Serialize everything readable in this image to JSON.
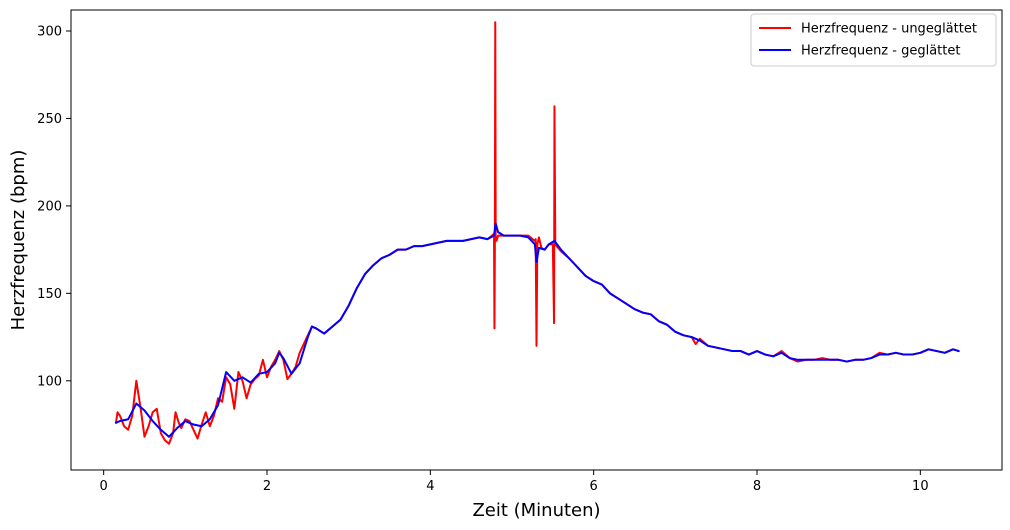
{
  "chart_data": {
    "type": "line",
    "title": "",
    "xlabel": "Zeit (Minuten)",
    "ylabel": "Herzfrequenz (bpm)",
    "xlim": [
      -0.4,
      11.0
    ],
    "ylim": [
      49,
      312
    ],
    "xticks": [
      0,
      2,
      4,
      6,
      8,
      10
    ],
    "yticks": [
      100,
      150,
      200,
      250,
      300
    ],
    "grid": false,
    "legend_position": "top-right",
    "series": [
      {
        "name": "Herzfrequenz - ungeglättet",
        "color": "#ff0000",
        "points": [
          [
            0.15,
            76
          ],
          [
            0.17,
            82
          ],
          [
            0.2,
            80
          ],
          [
            0.25,
            74
          ],
          [
            0.3,
            72
          ],
          [
            0.35,
            80
          ],
          [
            0.4,
            100
          ],
          [
            0.45,
            85
          ],
          [
            0.5,
            68
          ],
          [
            0.55,
            74
          ],
          [
            0.6,
            82
          ],
          [
            0.65,
            84
          ],
          [
            0.7,
            70
          ],
          [
            0.75,
            66
          ],
          [
            0.8,
            64
          ],
          [
            0.85,
            70
          ],
          [
            0.88,
            82
          ],
          [
            0.92,
            76
          ],
          [
            0.95,
            73
          ],
          [
            1.0,
            78
          ],
          [
            1.05,
            77
          ],
          [
            1.1,
            72
          ],
          [
            1.15,
            67
          ],
          [
            1.2,
            75
          ],
          [
            1.25,
            82
          ],
          [
            1.3,
            74
          ],
          [
            1.35,
            80
          ],
          [
            1.4,
            90
          ],
          [
            1.45,
            88
          ],
          [
            1.5,
            102
          ],
          [
            1.55,
            98
          ],
          [
            1.6,
            84
          ],
          [
            1.65,
            105
          ],
          [
            1.7,
            100
          ],
          [
            1.75,
            90
          ],
          [
            1.8,
            98
          ],
          [
            1.85,
            101
          ],
          [
            1.9,
            103
          ],
          [
            1.95,
            112
          ],
          [
            2.0,
            102
          ],
          [
            2.05,
            108
          ],
          [
            2.1,
            112
          ],
          [
            2.15,
            117
          ],
          [
            2.2,
            112
          ],
          [
            2.25,
            101
          ],
          [
            2.3,
            104
          ],
          [
            2.35,
            108
          ],
          [
            2.4,
            116
          ],
          [
            2.5,
            126
          ],
          [
            2.55,
            131
          ],
          [
            2.6,
            130
          ],
          [
            2.7,
            127
          ],
          [
            2.8,
            131
          ],
          [
            2.9,
            135
          ],
          [
            3.0,
            143
          ],
          [
            3.1,
            153
          ],
          [
            3.2,
            161
          ],
          [
            3.3,
            166
          ],
          [
            3.4,
            170
          ],
          [
            3.5,
            172
          ],
          [
            3.6,
            175
          ],
          [
            3.7,
            175
          ],
          [
            3.8,
            177
          ],
          [
            3.9,
            177
          ],
          [
            4.0,
            178
          ],
          [
            4.1,
            179
          ],
          [
            4.2,
            180
          ],
          [
            4.3,
            180
          ],
          [
            4.4,
            180
          ],
          [
            4.5,
            181
          ],
          [
            4.6,
            182
          ],
          [
            4.7,
            181
          ],
          [
            4.78,
            184
          ],
          [
            4.785,
            130
          ],
          [
            4.79,
            175
          ],
          [
            4.795,
            305
          ],
          [
            4.8,
            183
          ],
          [
            4.81,
            180
          ],
          [
            4.83,
            183
          ],
          [
            4.9,
            183
          ],
          [
            5.0,
            183
          ],
          [
            5.1,
            183
          ],
          [
            5.2,
            183
          ],
          [
            5.28,
            180
          ],
          [
            5.29,
            181
          ],
          [
            5.3,
            120
          ],
          [
            5.31,
            178
          ],
          [
            5.33,
            182
          ],
          [
            5.36,
            176
          ],
          [
            5.4,
            175
          ],
          [
            5.45,
            178
          ],
          [
            5.5,
            178
          ],
          [
            5.515,
            133
          ],
          [
            5.52,
            257
          ],
          [
            5.53,
            178
          ],
          [
            5.6,
            174
          ],
          [
            5.7,
            170
          ],
          [
            5.8,
            165
          ],
          [
            5.9,
            160
          ],
          [
            6.0,
            157
          ],
          [
            6.1,
            155
          ],
          [
            6.2,
            150
          ],
          [
            6.3,
            147
          ],
          [
            6.4,
            144
          ],
          [
            6.5,
            141
          ],
          [
            6.6,
            139
          ],
          [
            6.7,
            138
          ],
          [
            6.8,
            134
          ],
          [
            6.9,
            132
          ],
          [
            7.0,
            128
          ],
          [
            7.1,
            126
          ],
          [
            7.2,
            125
          ],
          [
            7.25,
            121
          ],
          [
            7.3,
            124
          ],
          [
            7.4,
            120
          ],
          [
            7.5,
            119
          ],
          [
            7.6,
            118
          ],
          [
            7.7,
            117
          ],
          [
            7.8,
            117
          ],
          [
            7.9,
            115
          ],
          [
            8.0,
            117
          ],
          [
            8.1,
            115
          ],
          [
            8.2,
            114
          ],
          [
            8.3,
            117
          ],
          [
            8.4,
            113
          ],
          [
            8.5,
            111
          ],
          [
            8.6,
            112
          ],
          [
            8.7,
            112
          ],
          [
            8.8,
            113
          ],
          [
            8.9,
            112
          ],
          [
            9.0,
            112
          ],
          [
            9.1,
            111
          ],
          [
            9.2,
            112
          ],
          [
            9.3,
            112
          ],
          [
            9.4,
            113
          ],
          [
            9.5,
            116
          ],
          [
            9.6,
            115
          ],
          [
            9.7,
            116
          ],
          [
            9.8,
            115
          ],
          [
            9.9,
            115
          ],
          [
            10.0,
            116
          ],
          [
            10.1,
            118
          ],
          [
            10.2,
            117
          ],
          [
            10.3,
            116
          ],
          [
            10.4,
            118
          ],
          [
            10.47,
            117
          ]
        ]
      },
      {
        "name": "Herzfrequenz - geglättet",
        "color": "#0000ff",
        "points": [
          [
            0.15,
            76
          ],
          [
            0.2,
            77
          ],
          [
            0.3,
            78
          ],
          [
            0.4,
            87
          ],
          [
            0.5,
            83
          ],
          [
            0.6,
            77
          ],
          [
            0.7,
            72
          ],
          [
            0.8,
            68
          ],
          [
            0.9,
            73
          ],
          [
            1.0,
            77
          ],
          [
            1.1,
            75
          ],
          [
            1.2,
            74
          ],
          [
            1.3,
            78
          ],
          [
            1.4,
            86
          ],
          [
            1.5,
            105
          ],
          [
            1.6,
            100
          ],
          [
            1.7,
            102
          ],
          [
            1.8,
            99
          ],
          [
            1.9,
            104
          ],
          [
            2.0,
            105
          ],
          [
            2.1,
            110
          ],
          [
            2.15,
            116
          ],
          [
            2.2,
            113
          ],
          [
            2.3,
            104
          ],
          [
            2.4,
            110
          ],
          [
            2.5,
            125
          ],
          [
            2.55,
            131
          ],
          [
            2.6,
            130
          ],
          [
            2.7,
            127
          ],
          [
            2.8,
            131
          ],
          [
            2.9,
            135
          ],
          [
            3.0,
            143
          ],
          [
            3.1,
            153
          ],
          [
            3.2,
            161
          ],
          [
            3.3,
            166
          ],
          [
            3.4,
            170
          ],
          [
            3.5,
            172
          ],
          [
            3.6,
            175
          ],
          [
            3.7,
            175
          ],
          [
            3.8,
            177
          ],
          [
            3.9,
            177
          ],
          [
            4.0,
            178
          ],
          [
            4.1,
            179
          ],
          [
            4.2,
            180
          ],
          [
            4.3,
            180
          ],
          [
            4.4,
            180
          ],
          [
            4.5,
            181
          ],
          [
            4.6,
            182
          ],
          [
            4.7,
            181
          ],
          [
            4.78,
            183
          ],
          [
            4.8,
            190
          ],
          [
            4.83,
            185
          ],
          [
            4.9,
            183
          ],
          [
            5.0,
            183
          ],
          [
            5.1,
            183
          ],
          [
            5.2,
            182
          ],
          [
            5.28,
            178
          ],
          [
            5.3,
            168
          ],
          [
            5.33,
            176
          ],
          [
            5.4,
            175
          ],
          [
            5.45,
            178
          ],
          [
            5.52,
            180
          ],
          [
            5.6,
            175
          ],
          [
            5.7,
            170
          ],
          [
            5.8,
            165
          ],
          [
            5.9,
            160
          ],
          [
            6.0,
            157
          ],
          [
            6.1,
            155
          ],
          [
            6.2,
            150
          ],
          [
            6.3,
            147
          ],
          [
            6.4,
            144
          ],
          [
            6.5,
            141
          ],
          [
            6.6,
            139
          ],
          [
            6.7,
            138
          ],
          [
            6.8,
            134
          ],
          [
            6.9,
            132
          ],
          [
            7.0,
            128
          ],
          [
            7.1,
            126
          ],
          [
            7.2,
            125
          ],
          [
            7.3,
            123
          ],
          [
            7.4,
            120
          ],
          [
            7.5,
            119
          ],
          [
            7.6,
            118
          ],
          [
            7.7,
            117
          ],
          [
            7.8,
            117
          ],
          [
            7.9,
            115
          ],
          [
            8.0,
            117
          ],
          [
            8.1,
            115
          ],
          [
            8.2,
            114
          ],
          [
            8.3,
            116
          ],
          [
            8.4,
            113
          ],
          [
            8.5,
            112
          ],
          [
            8.6,
            112
          ],
          [
            8.7,
            112
          ],
          [
            8.8,
            112
          ],
          [
            8.9,
            112
          ],
          [
            9.0,
            112
          ],
          [
            9.1,
            111
          ],
          [
            9.2,
            112
          ],
          [
            9.3,
            112
          ],
          [
            9.4,
            113
          ],
          [
            9.5,
            115
          ],
          [
            9.6,
            115
          ],
          [
            9.7,
            116
          ],
          [
            9.8,
            115
          ],
          [
            9.9,
            115
          ],
          [
            10.0,
            116
          ],
          [
            10.1,
            118
          ],
          [
            10.2,
            117
          ],
          [
            10.3,
            116
          ],
          [
            10.4,
            118
          ],
          [
            10.47,
            117
          ]
        ]
      }
    ]
  }
}
